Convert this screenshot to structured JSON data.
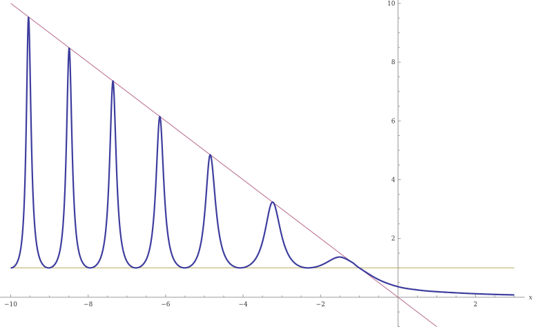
{
  "chart_data": {
    "type": "line",
    "title": "",
    "xlabel": "x",
    "ylabel": "",
    "xlim": [
      -10,
      3.4
    ],
    "ylim": [
      -1,
      10
    ],
    "grid": false,
    "x_ticks": [
      "-10",
      "-8",
      "-6",
      "-4",
      "-2",
      "2"
    ],
    "x_tick_values": [
      -10,
      -8,
      -6,
      -4,
      -2,
      2
    ],
    "y_ticks": [
      "2",
      "4",
      "6",
      "8",
      "10"
    ],
    "y_tick_values": [
      2,
      4,
      6,
      8,
      10
    ],
    "series": [
      {
        "kind": "curve",
        "color": "#3d3d9e",
        "minima": [
          {
            "x": -10.0,
            "y": 1
          },
          {
            "x": -9.02,
            "y": 1
          },
          {
            "x": -7.95,
            "y": 1
          },
          {
            "x": -6.77,
            "y": 1
          },
          {
            "x": -5.51,
            "y": 1
          },
          {
            "x": -4.08,
            "y": 1
          },
          {
            "x": -2.33,
            "y": 1
          }
        ],
        "peaks": [
          {
            "x": -9.54,
            "y": 9.54
          },
          {
            "x": -8.49,
            "y": 8.49
          },
          {
            "x": -7.36,
            "y": 7.36
          },
          {
            "x": -6.15,
            "y": 6.15
          },
          {
            "x": -4.85,
            "y": 4.85
          },
          {
            "x": -3.24,
            "y": 3.24
          },
          {
            "x": -1.5,
            "y": 1.37
          }
        ],
        "tail": [
          {
            "x": -1.2,
            "y": 1.2
          },
          {
            "x": -1.0,
            "y": 1.0
          },
          {
            "x": -0.5,
            "y": 0.6
          },
          {
            "x": 0,
            "y": 0.36
          },
          {
            "x": 0.5,
            "y": 0.25
          },
          {
            "x": 1,
            "y": 0.19
          },
          {
            "x": 2,
            "y": 0.12
          },
          {
            "x": 3,
            "y": 0.08
          }
        ]
      },
      {
        "kind": "line",
        "expression": "y = -x",
        "color": "#b5668a",
        "x_range": [
          -10,
          1
        ]
      },
      {
        "kind": "line",
        "expression": "y = 1",
        "color": "#b9a95a",
        "x_range": [
          -10,
          3
        ]
      }
    ]
  }
}
